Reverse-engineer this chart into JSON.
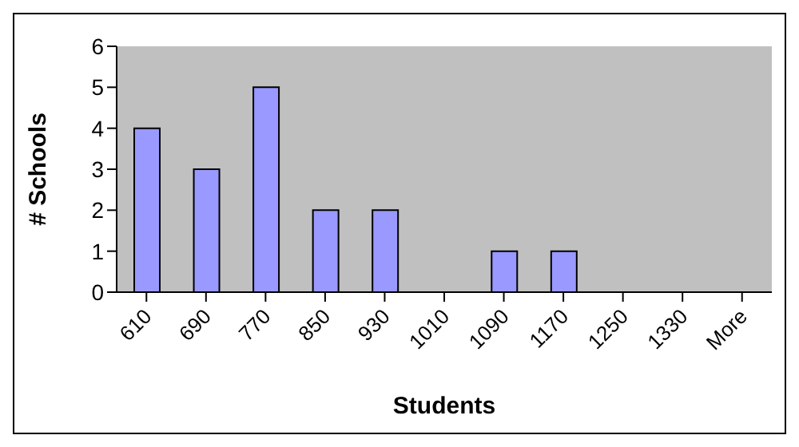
{
  "chart_data": {
    "type": "bar",
    "xlabel": "Students",
    "ylabel": "# Schools",
    "categories": [
      "610",
      "690",
      "770",
      "850",
      "930",
      "1010",
      "1090",
      "1170",
      "1250",
      "1330",
      "More"
    ],
    "values": [
      4,
      3,
      5,
      2,
      2,
      0,
      1,
      1,
      0,
      0,
      0
    ],
    "color": "#9999ff",
    "ylim": [
      0,
      6
    ],
    "yticks": [
      0,
      1,
      2,
      3,
      4,
      5,
      6
    ],
    "grid": false
  }
}
